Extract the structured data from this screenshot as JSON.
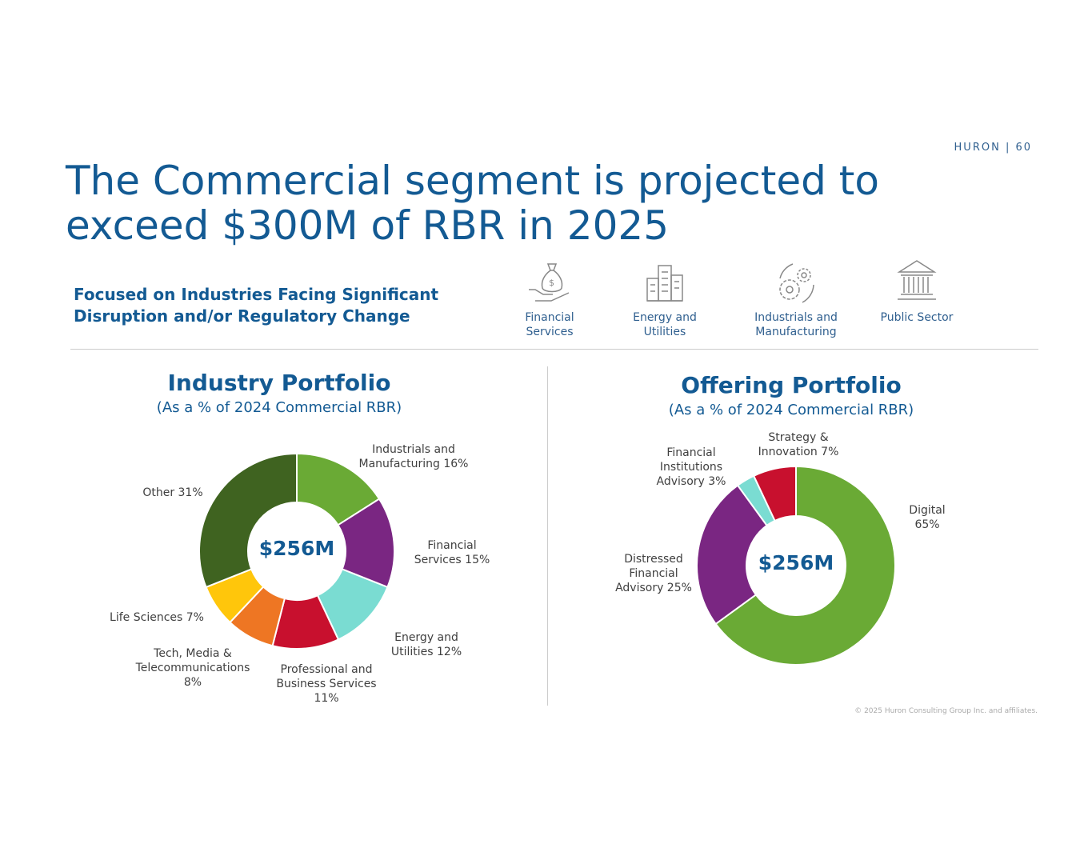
{
  "brand": "HURON | 60",
  "title_line1": "The Commercial segment is projected to",
  "title_line2": "exceed $300M of RBR in 2025",
  "focus_line1": "Focused on Industries Facing Significant",
  "focus_line2": "Disruption and/or Regulatory Change",
  "industries": [
    {
      "icon": "money-bag-hand-icon",
      "line1": "Financial",
      "line2": "Services"
    },
    {
      "icon": "buildings-icon",
      "line1": "Energy and",
      "line2": "Utilities"
    },
    {
      "icon": "gears-icon",
      "line1": "Industrials and",
      "line2": "Manufacturing"
    },
    {
      "icon": "government-building-icon",
      "line1": "Public Sector",
      "line2": ""
    }
  ],
  "footer": "© 2025 Huron Consulting Group Inc. and affiliates.",
  "chart_data": [
    {
      "type": "pie",
      "donut": true,
      "title": "Industry Portfolio",
      "subtitle": "(As a % of 2024 Commercial RBR)",
      "center_label": "$256M",
      "slices": [
        {
          "name": "Industrials and Manufacturing",
          "value": 16,
          "color": "#6aaa35",
          "label1": "Industrials and",
          "label2": "Manufacturing 16%",
          "label3": ""
        },
        {
          "name": "Financial Services",
          "value": 15,
          "color": "#7a2682",
          "label1": "Financial",
          "label2": "Services 15%",
          "label3": ""
        },
        {
          "name": "Energy and Utilities",
          "value": 12,
          "color": "#7adcd2",
          "label1": "Energy and",
          "label2": "Utilities 12%",
          "label3": ""
        },
        {
          "name": "Professional and Business Services",
          "value": 11,
          "color": "#c8102e",
          "label1": "Professional and",
          "label2": "Business Services",
          "label3": "11%"
        },
        {
          "name": "Tech, Media & Telecommunications",
          "value": 8,
          "color": "#ee7623",
          "label1": "Tech, Media &",
          "label2": "Telecommunications",
          "label3": "8%"
        },
        {
          "name": "Life Sciences",
          "value": 7,
          "color": "#ffc60b",
          "label1": "Life Sciences 7%",
          "label2": "",
          "label3": ""
        },
        {
          "name": "Other",
          "value": 31,
          "color": "#3f6320",
          "label1": "Other 31%",
          "label2": "",
          "label3": ""
        }
      ]
    },
    {
      "type": "pie",
      "donut": true,
      "title": "Offering Portfolio",
      "subtitle": "(As a % of 2024 Commercial RBR)",
      "center_label": "$256M",
      "slices": [
        {
          "name": "Digital",
          "value": 65,
          "color": "#6aaa35",
          "label1": "Digital",
          "label2": "65%",
          "label3": ""
        },
        {
          "name": "Distressed Financial Advisory",
          "value": 25,
          "color": "#7a2682",
          "label1": "Distressed",
          "label2": "Financial",
          "label3": "Advisory 25%"
        },
        {
          "name": "Financial Institutions Advisory",
          "value": 3,
          "color": "#7adcd2",
          "label1": "Financial",
          "label2": "Institutions",
          "label3": "Advisory 3%"
        },
        {
          "name": "Strategy & Innovation",
          "value": 7,
          "color": "#c8102e",
          "label1": "Strategy &",
          "label2": "Innovation 7%",
          "label3": ""
        }
      ]
    }
  ]
}
